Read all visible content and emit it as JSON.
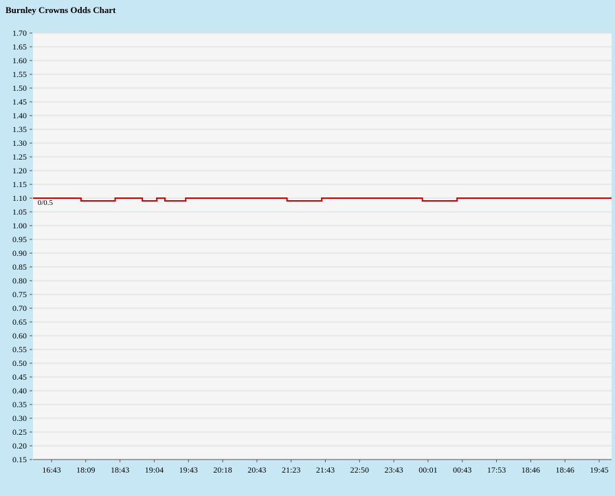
{
  "page": {
    "background_color": "#c6e7f3"
  },
  "chart_data": {
    "type": "line",
    "subtype": "step",
    "title": "Burnley Crowns Odds Chart",
    "xlabel": "",
    "ylabel": "",
    "legend": "none",
    "grid": true,
    "y_min": 0.15,
    "y_max": 1.7,
    "y_step": 0.05,
    "y_tick_labels": [
      "1.70",
      "1.65",
      "1.60",
      "1.55",
      "1.50",
      "1.45",
      "1.40",
      "1.35",
      "1.30",
      "1.25",
      "1.20",
      "1.15",
      "1.10",
      "1.05",
      "1.00",
      "0.95",
      "0.90",
      "0.85",
      "0.80",
      "0.75",
      "0.70",
      "0.65",
      "0.60",
      "0.55",
      "0.50",
      "0.45",
      "0.40",
      "0.35",
      "0.30",
      "0.25",
      "0.20",
      "0.15"
    ],
    "x_labels": [
      "16:43",
      "18:09",
      "18:43",
      "19:04",
      "19:43",
      "20:18",
      "20:43",
      "21:23",
      "21:43",
      "22:50",
      "23:43",
      "00:01",
      "00:43",
      "17:53",
      "18:46",
      "18:46",
      "19:45"
    ],
    "annotation": {
      "text": "0/0.5",
      "x_frac": 0.008,
      "value": 1.085
    },
    "segments": [
      {
        "value": 1.1,
        "from": 0.0,
        "to": 0.083
      },
      {
        "value": 1.09,
        "from": 0.083,
        "to": 0.142
      },
      {
        "value": 1.1,
        "from": 0.142,
        "to": 0.189
      },
      {
        "value": 1.09,
        "from": 0.189,
        "to": 0.214
      },
      {
        "value": 1.1,
        "from": 0.214,
        "to": 0.228
      },
      {
        "value": 1.09,
        "from": 0.228,
        "to": 0.264
      },
      {
        "value": 1.1,
        "from": 0.264,
        "to": 0.439
      },
      {
        "value": 1.09,
        "from": 0.439,
        "to": 0.499
      },
      {
        "value": 1.1,
        "from": 0.499,
        "to": 0.673
      },
      {
        "value": 1.09,
        "from": 0.673,
        "to": 0.733
      },
      {
        "value": 1.1,
        "from": 0.733,
        "to": 1.0
      }
    ],
    "colors": {
      "line": "#d40000",
      "plot_bg": "#f5f5f5",
      "grid": "#dcdcdc",
      "axis": "#555555",
      "text": "#000000"
    }
  }
}
